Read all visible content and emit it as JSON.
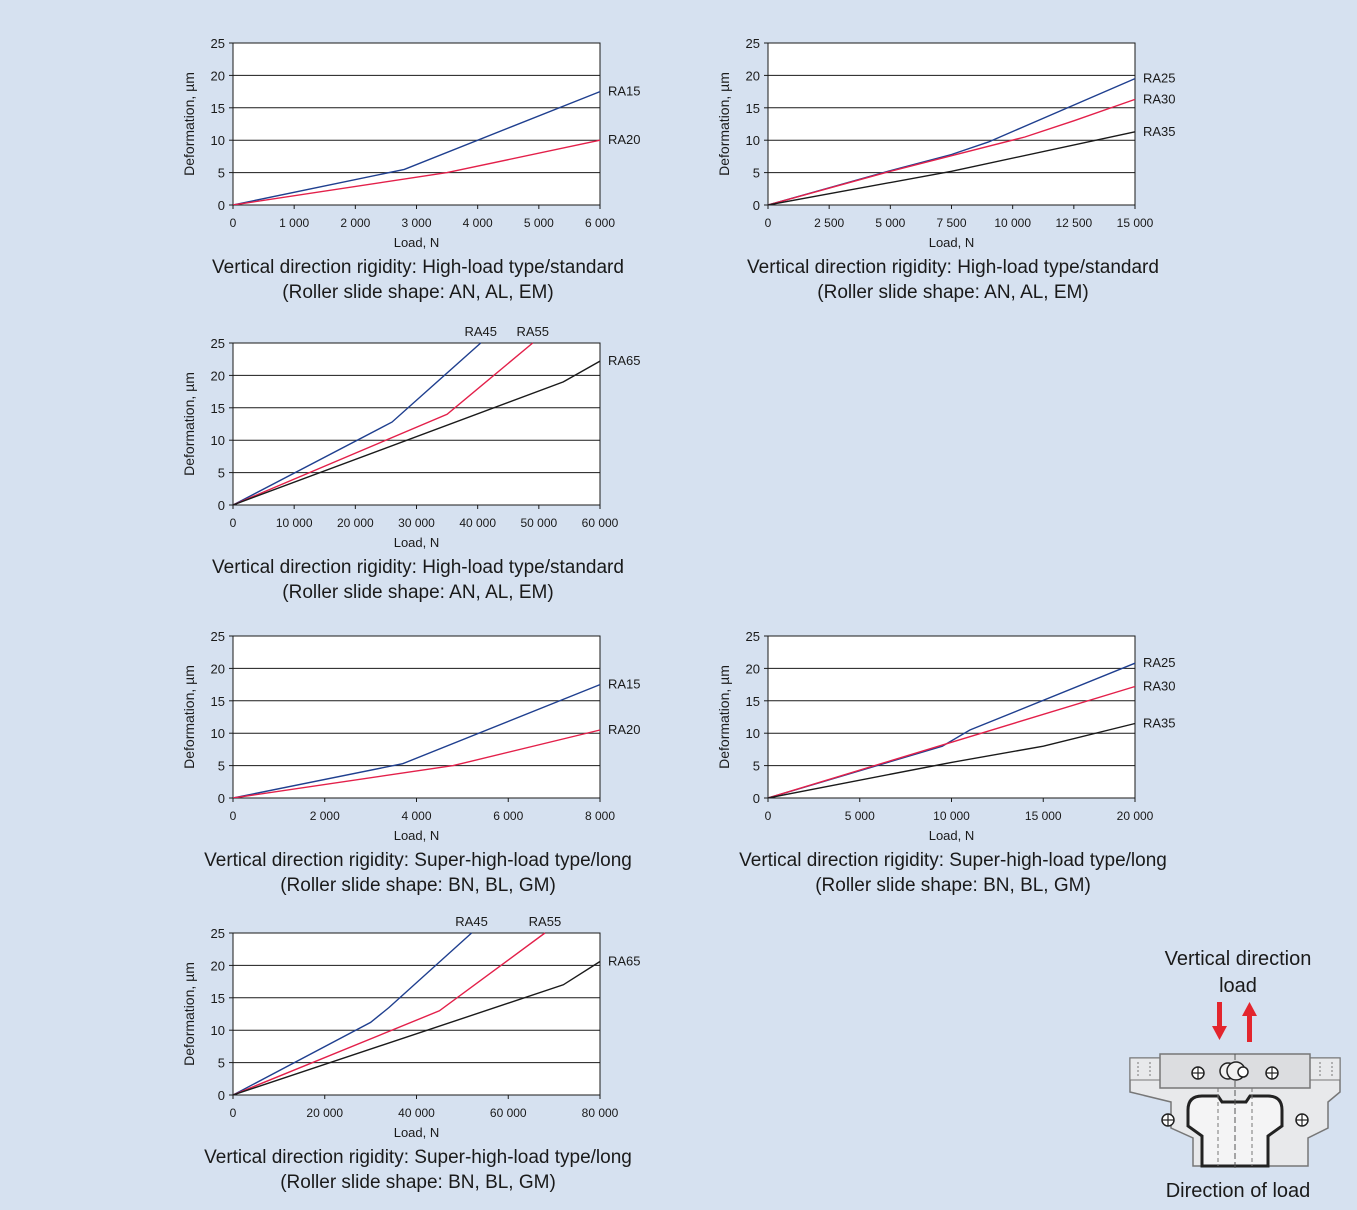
{
  "chart_data": [
    {
      "type": "line",
      "ylabel": "Deformation, µm",
      "xlabel": "Load, N",
      "xlim": [
        0,
        6000
      ],
      "ylim": [
        0,
        25
      ],
      "xticks": [
        0,
        1000,
        2000,
        3000,
        4000,
        5000,
        6000
      ],
      "xtick_labels": [
        "0",
        "1 000",
        "2 000",
        "3 000",
        "4 000",
        "5 000",
        "6 000"
      ],
      "yticks": [
        0,
        5,
        10,
        15,
        20,
        25
      ],
      "grid": "horizontal",
      "caption": [
        "Vertical direction rigidity: High-load type/standard",
        "(Roller slide shape: AN, AL, EM)"
      ],
      "series": [
        {
          "name": "RA15",
          "color": "#1f3f8f",
          "x": [
            0,
            2800,
            6000
          ],
          "y": [
            0,
            5.5,
            17.5
          ]
        },
        {
          "name": "RA20",
          "color": "#e3204a",
          "x": [
            0,
            3500,
            6000
          ],
          "y": [
            0,
            5,
            10
          ]
        }
      ]
    },
    {
      "type": "line",
      "ylabel": "Deformation, µm",
      "xlabel": "Load, N",
      "xlim": [
        0,
        15000
      ],
      "ylim": [
        0,
        25
      ],
      "xticks": [
        0,
        2500,
        5000,
        7500,
        10000,
        12500,
        15000
      ],
      "xtick_labels": [
        "0",
        "2 500",
        "5 000",
        "7 500",
        "10 000",
        "12 500",
        "15 000"
      ],
      "yticks": [
        0,
        5,
        10,
        15,
        20,
        25
      ],
      "grid": "horizontal",
      "caption": [
        "Vertical direction rigidity: High-load type/standard",
        "(Roller slide shape: AN, AL, EM)"
      ],
      "series": [
        {
          "name": "RA25",
          "color": "#1f3f8f",
          "x": [
            0,
            5000,
            7500,
            9000,
            15000
          ],
          "y": [
            0,
            5.3,
            7.8,
            9.7,
            19.5
          ]
        },
        {
          "name": "RA30",
          "color": "#e3204a",
          "x": [
            0,
            5000,
            10500,
            12500,
            15000
          ],
          "y": [
            0,
            5.2,
            10.5,
            13,
            16.3
          ]
        },
        {
          "name": "RA35",
          "color": "#1a1a1a",
          "x": [
            0,
            7500,
            15000
          ],
          "y": [
            0,
            5.2,
            11.3
          ]
        }
      ]
    },
    {
      "type": "line",
      "ylabel": "Deformation, µm",
      "xlabel": "Load, N",
      "xlim": [
        0,
        60000
      ],
      "ylim": [
        0,
        25
      ],
      "xticks": [
        0,
        10000,
        20000,
        30000,
        40000,
        50000,
        60000
      ],
      "xtick_labels": [
        "0",
        "10 000",
        "20 000",
        "30 000",
        "40 000",
        "50 000",
        "60 000"
      ],
      "yticks": [
        0,
        5,
        10,
        15,
        20,
        25
      ],
      "grid": "horizontal",
      "caption": [
        "Vertical direction rigidity: High-load type/standard",
        "(Roller slide shape: AN, AL, EM)"
      ],
      "series": [
        {
          "name": "RA45",
          "color": "#1f3f8f",
          "x": [
            0,
            26000,
            40500
          ],
          "y": [
            0,
            12.8,
            25
          ]
        },
        {
          "name": "RA55",
          "color": "#e3204a",
          "x": [
            0,
            35000,
            49000
          ],
          "y": [
            0,
            14,
            25
          ]
        },
        {
          "name": "RA65",
          "color": "#1a1a1a",
          "x": [
            0,
            54000,
            60000
          ],
          "y": [
            0,
            19,
            22.2
          ]
        }
      ]
    },
    {
      "type": "line",
      "ylabel": "Deformation, µm",
      "xlabel": "Load, N",
      "xlim": [
        0,
        8000
      ],
      "ylim": [
        0,
        25
      ],
      "xticks": [
        0,
        2000,
        4000,
        6000,
        8000
      ],
      "xtick_labels": [
        "0",
        "2 000",
        "4 000",
        "6 000",
        "8 000"
      ],
      "yticks": [
        0,
        5,
        10,
        15,
        20,
        25
      ],
      "grid": "horizontal",
      "caption": [
        "Vertical direction rigidity: Super-high-load type/long",
        "(Roller slide shape: BN, BL, GM)"
      ],
      "series": [
        {
          "name": "RA15",
          "color": "#1f3f8f",
          "x": [
            0,
            3700,
            8000
          ],
          "y": [
            0,
            5.3,
            17.5
          ]
        },
        {
          "name": "RA20",
          "color": "#e3204a",
          "x": [
            0,
            4800,
            8000
          ],
          "y": [
            0,
            5,
            10.5
          ]
        }
      ]
    },
    {
      "type": "line",
      "ylabel": "Deformation, µm",
      "xlabel": "Load, N",
      "xlim": [
        0,
        20000
      ],
      "ylim": [
        0,
        25
      ],
      "xticks": [
        0,
        5000,
        10000,
        15000,
        20000
      ],
      "xtick_labels": [
        "0",
        "5 000",
        "10 000",
        "15 000",
        "20 000"
      ],
      "yticks": [
        0,
        5,
        10,
        15,
        20,
        25
      ],
      "grid": "horizontal",
      "caption": [
        "Vertical direction rigidity: Super-high-load type/long",
        "(Roller slide shape: BN, BL, GM)"
      ],
      "series": [
        {
          "name": "RA25",
          "color": "#1f3f8f",
          "x": [
            0,
            9500,
            11000,
            20000
          ],
          "y": [
            0,
            8,
            10.5,
            20.8
          ]
        },
        {
          "name": "RA30",
          "color": "#e3204a",
          "x": [
            0,
            20000
          ],
          "y": [
            0,
            17.2
          ]
        },
        {
          "name": "RA35",
          "color": "#1a1a1a",
          "x": [
            0,
            10000,
            15000,
            20000
          ],
          "y": [
            0,
            5.5,
            8,
            11.5
          ]
        }
      ]
    },
    {
      "type": "line",
      "ylabel": "Deformation, µm",
      "xlabel": "Load, N",
      "xlim": [
        0,
        80000
      ],
      "ylim": [
        0,
        25
      ],
      "xticks": [
        0,
        20000,
        40000,
        60000,
        80000
      ],
      "xtick_labels": [
        "0",
        "20 000",
        "40 000",
        "60 000",
        "80 000"
      ],
      "yticks": [
        0,
        5,
        10,
        15,
        20,
        25
      ],
      "grid": "horizontal",
      "caption": [
        "Vertical direction rigidity: Super-high-load type/long",
        "(Roller slide shape: BN, BL, GM)"
      ],
      "series": [
        {
          "name": "RA45",
          "color": "#1f3f8f",
          "x": [
            0,
            30000,
            34000,
            52000
          ],
          "y": [
            0,
            11.2,
            13.5,
            25
          ]
        },
        {
          "name": "RA55",
          "color": "#e3204a",
          "x": [
            0,
            45000,
            68000
          ],
          "y": [
            0,
            13,
            25
          ]
        },
        {
          "name": "RA65",
          "color": "#1a1a1a",
          "x": [
            0,
            72000,
            80000
          ],
          "y": [
            0,
            17,
            20.6
          ]
        }
      ]
    }
  ],
  "diagram": {
    "title_line1": "Vertical direction",
    "title_line2": "load",
    "footer": "Direction of load",
    "arrow_color": "#e3252d"
  }
}
